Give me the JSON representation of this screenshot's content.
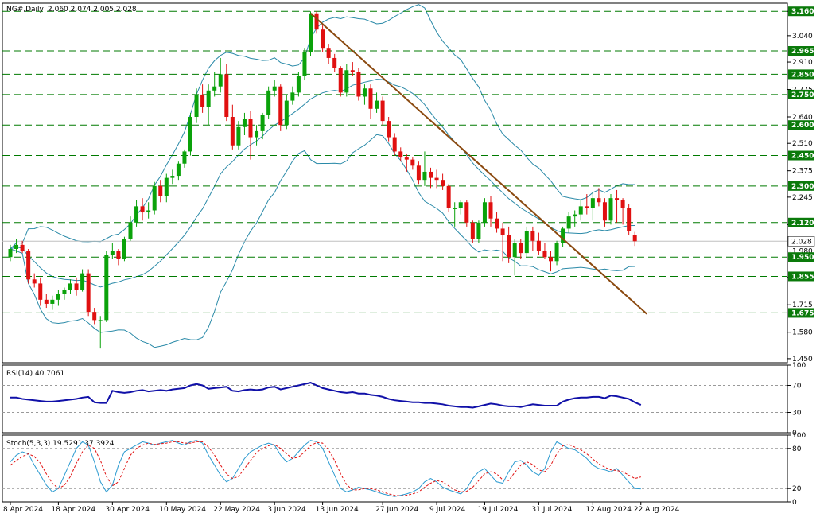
{
  "header": {
    "symbol": "NG#,Daily",
    "ohlc": "2.060 2.074 2.005 2.028"
  },
  "rsi_title": "RSI(14) 40.7061",
  "stoch_title": "Stoch(5,3,3) 19.5291 37.3924",
  "colors": {
    "up": "#0aa20a",
    "down": "#e01010",
    "trend": "#8b4a10",
    "bands": "#2a8aa8",
    "rsi": "#1010a8",
    "stoch_main": "#2a9ad0",
    "stoch_signal": "#e01010",
    "level_tag": "#0a7a0a"
  },
  "chart_data": [
    {
      "type": "candlestick",
      "title": "NG#,Daily",
      "ylim": [
        1.43,
        3.2
      ],
      "y_ticks": [
        3.16,
        3.04,
        2.91,
        2.775,
        2.64,
        2.51,
        2.375,
        2.245,
        2.11,
        1.98,
        1.85,
        1.715,
        1.58,
        1.45
      ],
      "x_tick_labels": [
        "8 Apr 2024",
        "18 Apr 2024",
        "30 Apr 2024",
        "10 May 2024",
        "22 May 2024",
        "3 Jun 2024",
        "13 Jun 2024",
        "27 Jun 2024",
        "9 Jul 2024",
        "19 Jul 2024",
        "31 Jul 2024",
        "12 Aug 2024",
        "22 Aug 2024"
      ],
      "x_tick_index": [
        0,
        8,
        17,
        26,
        35,
        44,
        52,
        62,
        71,
        79,
        88,
        97,
        105
      ],
      "levels": [
        3.16,
        2.965,
        2.85,
        2.75,
        2.6,
        2.45,
        2.3,
        2.12,
        1.95,
        1.855,
        1.675
      ],
      "current_price": 2.028,
      "indicators": [
        "Bollinger Bands"
      ],
      "trendline": {
        "from": {
          "index": 50,
          "price": 3.15
        },
        "to": {
          "index": 106,
          "price": 1.67
        }
      },
      "candles": [
        [
          1.95,
          2.01,
          1.93,
          1.99
        ],
        [
          1.99,
          2.04,
          1.97,
          2.01
        ],
        [
          2.01,
          2.03,
          1.97,
          1.98
        ],
        [
          1.98,
          1.99,
          1.82,
          1.84
        ],
        [
          1.84,
          1.87,
          1.8,
          1.82
        ],
        [
          1.82,
          1.85,
          1.71,
          1.74
        ],
        [
          1.74,
          1.77,
          1.7,
          1.72
        ],
        [
          1.72,
          1.76,
          1.69,
          1.74
        ],
        [
          1.74,
          1.79,
          1.71,
          1.77
        ],
        [
          1.77,
          1.8,
          1.74,
          1.79
        ],
        [
          1.79,
          1.84,
          1.77,
          1.82
        ],
        [
          1.82,
          1.85,
          1.76,
          1.79
        ],
        [
          1.79,
          1.89,
          1.78,
          1.87
        ],
        [
          1.87,
          1.89,
          1.66,
          1.68
        ],
        [
          1.68,
          1.7,
          1.62,
          1.64
        ],
        [
          1.64,
          1.66,
          1.5,
          1.64
        ],
        [
          1.64,
          1.98,
          1.63,
          1.96
        ],
        [
          1.96,
          2.02,
          1.94,
          1.98
        ],
        [
          1.98,
          1.99,
          1.91,
          1.94
        ],
        [
          1.94,
          2.05,
          1.93,
          2.04
        ],
        [
          2.04,
          2.15,
          2.03,
          2.12
        ],
        [
          2.12,
          2.23,
          2.1,
          2.2
        ],
        [
          2.2,
          2.24,
          2.13,
          2.17
        ],
        [
          2.17,
          2.22,
          2.14,
          2.18
        ],
        [
          2.18,
          2.32,
          2.16,
          2.3
        ],
        [
          2.3,
          2.33,
          2.22,
          2.25
        ],
        [
          2.25,
          2.36,
          2.22,
          2.34
        ],
        [
          2.34,
          2.38,
          2.31,
          2.35
        ],
        [
          2.35,
          2.42,
          2.33,
          2.41
        ],
        [
          2.41,
          2.48,
          2.39,
          2.47
        ],
        [
          2.47,
          2.66,
          2.45,
          2.64
        ],
        [
          2.64,
          2.78,
          2.61,
          2.75
        ],
        [
          2.75,
          2.8,
          2.66,
          2.69
        ],
        [
          2.69,
          2.8,
          2.6,
          2.77
        ],
        [
          2.77,
          2.86,
          2.74,
          2.79
        ],
        [
          2.79,
          2.93,
          2.76,
          2.85
        ],
        [
          2.85,
          2.9,
          2.62,
          2.64
        ],
        [
          2.64,
          2.7,
          2.48,
          2.5
        ],
        [
          2.5,
          2.62,
          2.48,
          2.59
        ],
        [
          2.59,
          2.66,
          2.55,
          2.63
        ],
        [
          2.63,
          2.67,
          2.43,
          2.54
        ],
        [
          2.54,
          2.6,
          2.5,
          2.57
        ],
        [
          2.57,
          2.66,
          2.53,
          2.65
        ],
        [
          2.65,
          2.79,
          2.63,
          2.77
        ],
        [
          2.77,
          2.82,
          2.74,
          2.79
        ],
        [
          2.79,
          2.8,
          2.57,
          2.6
        ],
        [
          2.6,
          2.75,
          2.58,
          2.72
        ],
        [
          2.72,
          2.79,
          2.7,
          2.76
        ],
        [
          2.76,
          2.86,
          2.74,
          2.84
        ],
        [
          2.84,
          2.98,
          2.82,
          2.96
        ],
        [
          2.96,
          3.16,
          2.94,
          3.15
        ],
        [
          3.15,
          3.16,
          3.05,
          3.07
        ],
        [
          3.07,
          3.09,
          2.96,
          2.98
        ],
        [
          2.98,
          3.0,
          2.9,
          2.93
        ],
        [
          2.93,
          2.95,
          2.86,
          2.88
        ],
        [
          2.88,
          2.89,
          2.74,
          2.76
        ],
        [
          2.76,
          2.9,
          2.74,
          2.87
        ],
        [
          2.87,
          2.91,
          2.84,
          2.86
        ],
        [
          2.86,
          2.88,
          2.72,
          2.74
        ],
        [
          2.74,
          2.8,
          2.7,
          2.78
        ],
        [
          2.78,
          2.8,
          2.63,
          2.68
        ],
        [
          2.68,
          2.76,
          2.66,
          2.72
        ],
        [
          2.72,
          2.74,
          2.6,
          2.62
        ],
        [
          2.62,
          2.64,
          2.52,
          2.54
        ],
        [
          2.54,
          2.56,
          2.45,
          2.47
        ],
        [
          2.47,
          2.49,
          2.42,
          2.44
        ],
        [
          2.44,
          2.46,
          2.37,
          2.43
        ],
        [
          2.43,
          2.44,
          2.38,
          2.4
        ],
        [
          2.4,
          2.42,
          2.31,
          2.33
        ],
        [
          2.33,
          2.47,
          2.3,
          2.37
        ],
        [
          2.37,
          2.39,
          2.29,
          2.34
        ],
        [
          2.34,
          2.38,
          2.29,
          2.33
        ],
        [
          2.33,
          2.36,
          2.28,
          2.3
        ],
        [
          2.3,
          2.31,
          2.17,
          2.19
        ],
        [
          2.19,
          2.22,
          2.1,
          2.19
        ],
        [
          2.19,
          2.23,
          2.16,
          2.22
        ],
        [
          2.22,
          2.23,
          2.1,
          2.12
        ],
        [
          2.12,
          2.13,
          2.02,
          2.04
        ],
        [
          2.04,
          2.13,
          2.02,
          2.12
        ],
        [
          2.12,
          2.24,
          2.1,
          2.22
        ],
        [
          2.22,
          2.25,
          2.1,
          2.14
        ],
        [
          2.14,
          2.17,
          2.07,
          2.09
        ],
        [
          2.09,
          2.12,
          1.93,
          2.06
        ],
        [
          2.06,
          2.1,
          1.92,
          1.95
        ],
        [
          1.95,
          2.04,
          1.86,
          2.02
        ],
        [
          2.02,
          2.04,
          1.94,
          1.97
        ],
        [
          1.97,
          2.1,
          1.95,
          2.08
        ],
        [
          2.08,
          2.1,
          1.98,
          2.03
        ],
        [
          2.03,
          2.07,
          1.96,
          1.98
        ],
        [
          1.98,
          2.02,
          1.94,
          1.95
        ],
        [
          1.95,
          1.98,
          1.88,
          1.93
        ],
        [
          1.93,
          2.03,
          1.91,
          2.02
        ],
        [
          2.02,
          2.1,
          2.0,
          2.09
        ],
        [
          2.09,
          2.17,
          2.07,
          2.15
        ],
        [
          2.15,
          2.18,
          2.1,
          2.16
        ],
        [
          2.16,
          2.23,
          2.13,
          2.2
        ],
        [
          2.2,
          2.26,
          2.16,
          2.19
        ],
        [
          2.19,
          2.27,
          2.13,
          2.24
        ],
        [
          2.24,
          2.29,
          2.2,
          2.22
        ],
        [
          2.22,
          2.24,
          2.1,
          2.13
        ],
        [
          2.13,
          2.26,
          2.11,
          2.24
        ],
        [
          2.24,
          2.28,
          2.12,
          2.23
        ],
        [
          2.23,
          2.24,
          2.11,
          2.19
        ],
        [
          2.19,
          2.21,
          2.06,
          2.08
        ],
        [
          2.06,
          2.074,
          2.005,
          2.028
        ]
      ]
    },
    {
      "type": "line",
      "title": "RSI(14) 40.7061",
      "ylim": [
        0,
        100
      ],
      "y_ticks": [
        100,
        70,
        30,
        0
      ],
      "levels": [
        70,
        30
      ],
      "series": [
        {
          "values": [
            52,
            52,
            50,
            49,
            48,
            47,
            46,
            46,
            47,
            48,
            49,
            50,
            52,
            53,
            45,
            44,
            44,
            62,
            60,
            59,
            60,
            62,
            63,
            61,
            62,
            63,
            62,
            64,
            65,
            66,
            70,
            72,
            70,
            65,
            66,
            67,
            68,
            62,
            61,
            63,
            64,
            63,
            64,
            67,
            68,
            64,
            66,
            68,
            70,
            72,
            74,
            70,
            66,
            64,
            62,
            60,
            59,
            60,
            58,
            58,
            56,
            55,
            53,
            50,
            48,
            47,
            46,
            45,
            45,
            44,
            44,
            43,
            42,
            40,
            39,
            38,
            38,
            37,
            39,
            41,
            43,
            42,
            40,
            39,
            39,
            38,
            40,
            42,
            41,
            40,
            40,
            40,
            46,
            49,
            51,
            52,
            52,
            53,
            53,
            51,
            55,
            54,
            52,
            50,
            45,
            41
          ]
        }
      ]
    },
    {
      "type": "line",
      "title": "Stoch(5,3,3) 19.5291 37.3924",
      "ylim": [
        0,
        100
      ],
      "y_ticks": [
        100,
        80,
        20,
        0
      ],
      "levels": [
        80,
        20
      ],
      "series": [
        {
          "values": [
            60,
            70,
            75,
            72,
            55,
            40,
            25,
            15,
            20,
            40,
            60,
            80,
            90,
            85,
            60,
            30,
            15,
            25,
            55,
            75,
            80,
            85,
            90,
            88,
            85,
            88,
            90,
            92,
            88,
            85,
            90,
            92,
            88,
            70,
            55,
            40,
            30,
            35,
            50,
            65,
            75,
            80,
            85,
            88,
            85,
            70,
            60,
            65,
            75,
            85,
            92,
            90,
            80,
            60,
            40,
            20,
            15,
            18,
            22,
            20,
            18,
            15,
            12,
            10,
            8,
            10,
            12,
            15,
            20,
            30,
            35,
            30,
            22,
            18,
            15,
            12,
            20,
            35,
            45,
            50,
            40,
            30,
            28,
            45,
            60,
            62,
            55,
            45,
            40,
            50,
            75,
            90,
            85,
            80,
            78,
            72,
            65,
            55,
            50,
            48,
            45,
            50,
            40,
            30,
            20,
            19.5
          ]
        },
        {
          "values": [
            55,
            62,
            68,
            72,
            68,
            58,
            42,
            28,
            20,
            25,
            38,
            58,
            75,
            85,
            80,
            62,
            38,
            24,
            30,
            50,
            70,
            80,
            85,
            88,
            86,
            87,
            88,
            90,
            90,
            88,
            88,
            90,
            90,
            82,
            70,
            55,
            42,
            35,
            38,
            50,
            62,
            74,
            80,
            84,
            86,
            80,
            72,
            65,
            67,
            75,
            84,
            89,
            88,
            78,
            62,
            42,
            26,
            18,
            18,
            20,
            20,
            18,
            15,
            12,
            10,
            9,
            10,
            12,
            15,
            22,
            28,
            32,
            30,
            24,
            18,
            15,
            16,
            22,
            32,
            42,
            45,
            42,
            33,
            32,
            44,
            55,
            60,
            56,
            48,
            45,
            55,
            72,
            84,
            86,
            82,
            78,
            72,
            64,
            57,
            52,
            48,
            47,
            45,
            40,
            35,
            37.4
          ]
        }
      ]
    }
  ]
}
